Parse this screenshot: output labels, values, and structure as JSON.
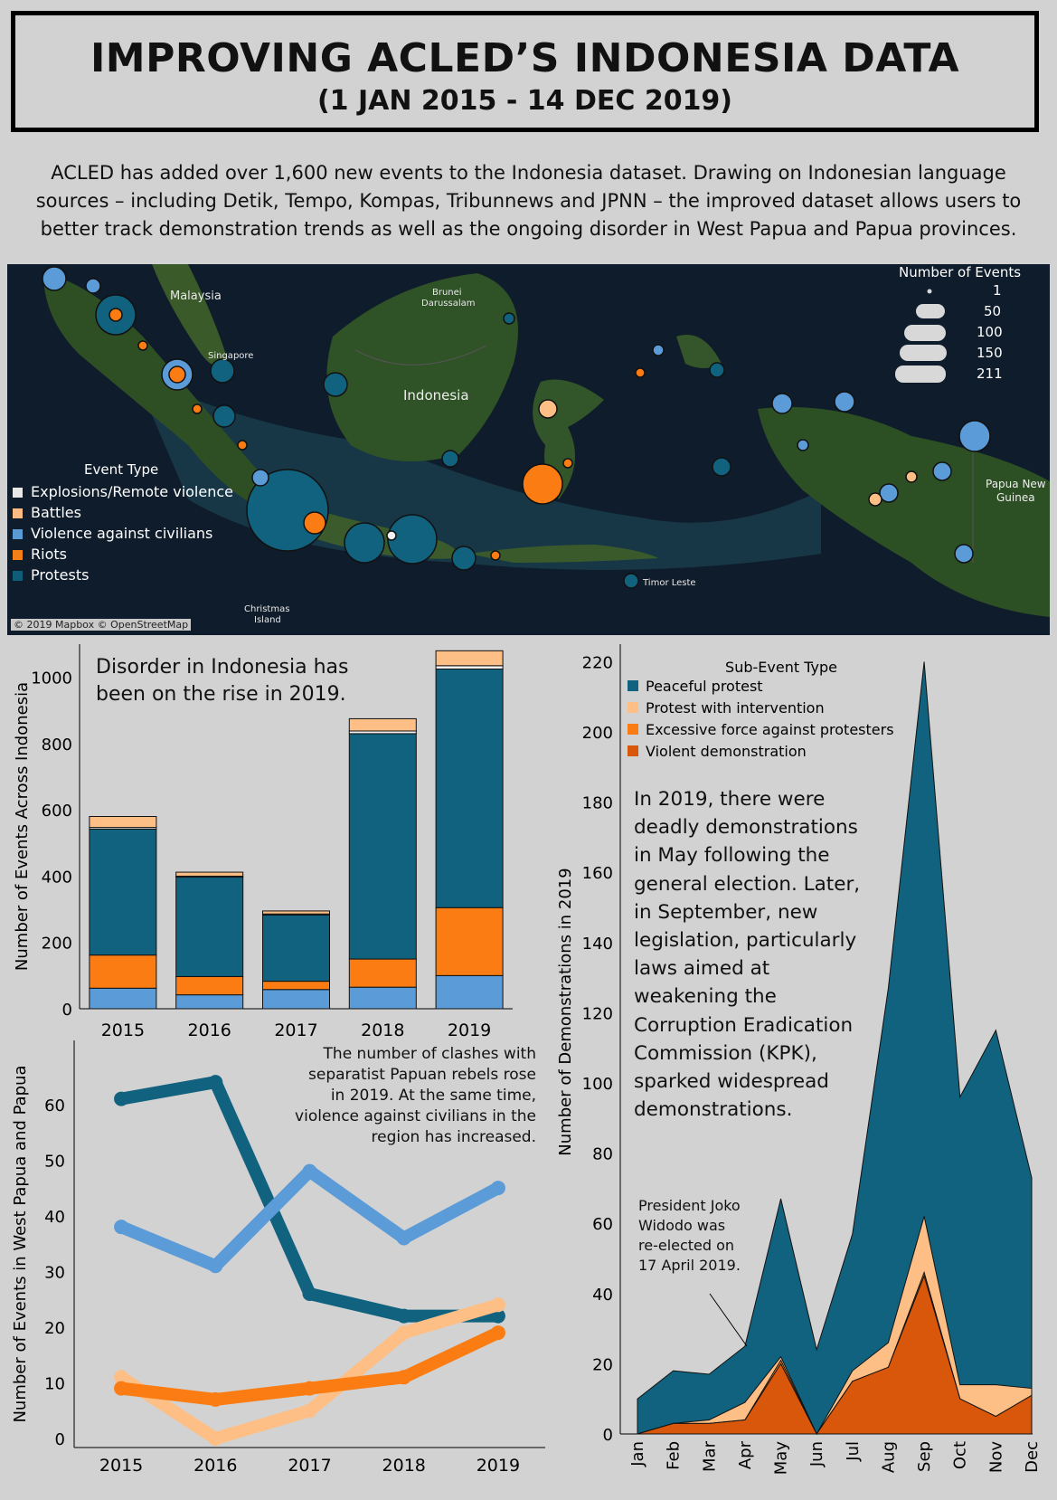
{
  "header": {
    "title": "IMPROVING ACLED’S INDONESIA DATA",
    "subtitle": "(1 JAN 2015 - 14 DEC 2019)"
  },
  "intro": {
    "line1": "ACLED has added over 1,600 new events to the Indonesia dataset. Drawing on Indonesian language",
    "line2": "sources – including Detik, Tempo, Kompas, Tribunnews and JPNN –  the improved dataset allows users to",
    "line3": "better track demonstration trends as well as the ongoing disorder in West Papua and Papua provinces."
  },
  "map": {
    "labels": {
      "malaysia": "Malaysia",
      "brunei": "Brunei",
      "brunei2": "Darussalam",
      "singapore": "Singapore",
      "indonesia": "Indonesia",
      "png": "Papua New",
      "png2": "Guinea",
      "timor": "Timor Leste",
      "christmas": "Christmas",
      "christmas2": "Island"
    },
    "credit": "© 2019 Mapbox © OpenStreetMap",
    "size_legend": {
      "title": "Number of Events",
      "items": [
        "1",
        "50",
        "100",
        "150",
        "211"
      ]
    },
    "event_legend": {
      "title": "Event Type",
      "items": [
        {
          "label": "Explosions/Remote violence",
          "color": "#e8e8e8"
        },
        {
          "label": "Battles",
          "color": "#fdbb84"
        },
        {
          "label": "Violence against civilians",
          "color": "#5b9bd5"
        },
        {
          "label": "Riots",
          "color": "#f57f17"
        },
        {
          "label": "Protests",
          "color": "#0e5e7a"
        }
      ]
    }
  },
  "colors": {
    "protests": "#10627f",
    "riots": "#fa7c12",
    "vac": "#5b9bd8",
    "battles": "#fdbf86",
    "explosions": "#f2f2f2",
    "violent_demo": "#d9570a"
  },
  "notes": {
    "bar_note_1": "Disorder in Indonesia has",
    "bar_note_2": "been on the rise in 2019.",
    "line_note": [
      "The number of clashes with",
      "separatist Papuan rebels rose",
      "in 2019. At the same time,",
      "violence against civilians in the",
      "region has increased."
    ],
    "area_note": [
      "In 2019, there were",
      "deadly demonstrations",
      "in May following the",
      "general election. Later,",
      "in September, new",
      "legislation, particularly",
      "laws aimed at",
      "weakening the",
      "Corruption Eradication",
      "Commission (KPK),",
      "sparked widespread",
      "demonstrations."
    ],
    "jokowi_note": [
      "President Joko",
      "Widodo was",
      "re-elected on",
      "17 April 2019."
    ]
  },
  "chart_data": [
    {
      "type": "bar",
      "stacked": true,
      "categories": [
        "2015",
        "2016",
        "2017",
        "2018",
        "2019"
      ],
      "ylabel": "Number of Events Across Indonesia",
      "ylim": [
        0,
        1100
      ],
      "yticks": [
        0,
        200,
        400,
        600,
        800,
        1000
      ],
      "series": [
        {
          "name": "Violence against civilians",
          "color": "#5b9bd8",
          "values": [
            62,
            42,
            58,
            65,
            100
          ]
        },
        {
          "name": "Riots",
          "color": "#fa7c12",
          "values": [
            100,
            55,
            25,
            85,
            205
          ]
        },
        {
          "name": "Protests",
          "color": "#10627f",
          "values": [
            380,
            300,
            200,
            680,
            720
          ]
        },
        {
          "name": "Explosions/Remote violence",
          "color": "#f2f2f2",
          "values": [
            5,
            3,
            3,
            8,
            10
          ]
        },
        {
          "name": "Battles",
          "color": "#fdbf86",
          "values": [
            33,
            12,
            9,
            37,
            45
          ]
        }
      ]
    },
    {
      "type": "line",
      "categories": [
        "2015",
        "2016",
        "2017",
        "2018",
        "2019"
      ],
      "ylabel": "Number of Events in West Papua and Papua",
      "ylim": [
        0,
        65
      ],
      "yticks": [
        0,
        10,
        20,
        30,
        40,
        50,
        60
      ],
      "series": [
        {
          "name": "Protests",
          "color": "#10627f",
          "values": [
            61,
            64,
            26,
            22,
            22
          ]
        },
        {
          "name": "Violence against civilians",
          "color": "#5b9bd8",
          "values": [
            38,
            31,
            48,
            36,
            45
          ]
        },
        {
          "name": "Battles",
          "color": "#fdbf86",
          "values": [
            11,
            0,
            5,
            19,
            24
          ]
        },
        {
          "name": "Riots",
          "color": "#fa7c12",
          "values": [
            9,
            7,
            9,
            11,
            19
          ]
        }
      ]
    },
    {
      "type": "area",
      "stacked": true,
      "title": "Sub-Event Type",
      "categories": [
        "Jan",
        "Feb",
        "Mar",
        "Apr",
        "May",
        "Jun",
        "Jul",
        "Aug",
        "Sep",
        "Oct",
        "Nov",
        "Dec"
      ],
      "ylabel": "Number of Demonstrations in 2019",
      "ylim": [
        0,
        225
      ],
      "yticks": [
        0,
        20,
        40,
        60,
        80,
        100,
        120,
        140,
        160,
        180,
        200,
        220
      ],
      "series": [
        {
          "name": "Violent demonstration",
          "color": "#d9570a",
          "values": [
            0,
            3,
            3,
            4,
            20,
            0,
            15,
            19,
            45,
            10,
            5,
            11
          ]
        },
        {
          "name": "Excessive force against protesters",
          "color": "#fa7c12",
          "values": [
            0,
            0,
            0,
            0,
            1,
            0,
            0,
            0,
            1,
            0,
            0,
            0
          ]
        },
        {
          "name": "Protest with intervention",
          "color": "#fdbf86",
          "values": [
            0,
            0,
            1,
            5,
            1,
            0,
            3,
            7,
            16,
            4,
            9,
            2
          ]
        },
        {
          "name": "Peaceful protest",
          "color": "#10627f",
          "values": [
            10,
            15,
            13,
            16,
            45,
            24,
            39,
            101,
            158,
            82,
            101,
            60
          ]
        }
      ],
      "totals": [
        10,
        18,
        17,
        25,
        67,
        24,
        57,
        127,
        220,
        96,
        115,
        73
      ]
    }
  ]
}
